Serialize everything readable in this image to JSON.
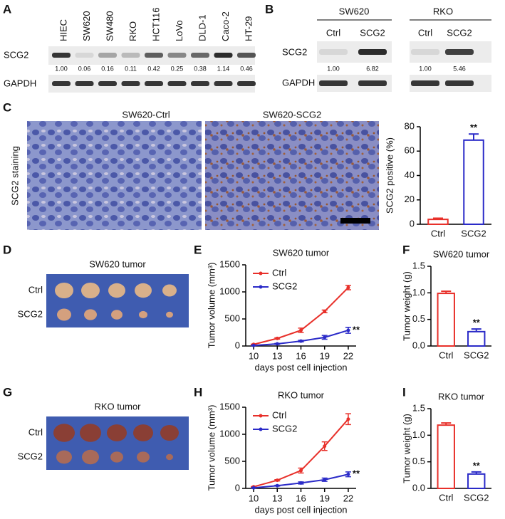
{
  "panel_labels": [
    "A",
    "B",
    "C",
    "D",
    "E",
    "F",
    "G",
    "H",
    "I"
  ],
  "blot_a": {
    "lanes": [
      "HIEC",
      "SW620",
      "SW480",
      "RKO",
      "HCT116",
      "LoVo",
      "DLD-1",
      "Caco-2",
      "HT-29"
    ],
    "rows": [
      "SCG2",
      "GAPDH"
    ],
    "values": [
      "1.00",
      "0.06",
      "0.16",
      "0.11",
      "0.42",
      "0.25",
      "0.38",
      "1.14",
      "0.46"
    ]
  },
  "blot_b": {
    "groups": [
      "SW620",
      "RKO"
    ],
    "lanes": [
      "Ctrl",
      "SCG2",
      "Ctrl",
      "SCG2"
    ],
    "rows": [
      "SCG2",
      "GAPDH"
    ],
    "values": [
      "1.00",
      "6.82",
      "1.00",
      "5.46"
    ]
  },
  "staining": {
    "titles": [
      "SW620-Ctrl",
      "SW620-SCG2"
    ],
    "row_label": "SCG2 staining"
  },
  "tumor_d": {
    "title": "SW620 tumor",
    "rows": [
      "Ctrl",
      "SCG2"
    ]
  },
  "tumor_g": {
    "title": "RKO tumor",
    "rows": [
      "Ctrl",
      "SCG2"
    ]
  },
  "chart_data": [
    {
      "type": "bar",
      "y_label": "SCG2 positive (%)",
      "categories": [
        "Ctrl",
        "SCG2"
      ],
      "values": [
        4,
        69
      ],
      "errors": [
        1,
        5
      ],
      "colors": [
        "#e8302a",
        "#2a2ac8"
      ],
      "ylim": [
        0,
        80
      ],
      "yticks": [
        0,
        20,
        40,
        60,
        80
      ],
      "annotation": "**"
    },
    {
      "type": "line",
      "title": "SW620 tumor",
      "y_label": "Tumor volume (mm³)",
      "x_label": "days post cell injection",
      "x": [
        10,
        13,
        16,
        19,
        22
      ],
      "series": [
        {
          "name": "Ctrl",
          "color": "#e8302a",
          "values": [
            30,
            140,
            290,
            640,
            1080
          ],
          "errors": [
            5,
            12,
            40,
            25,
            40
          ]
        },
        {
          "name": "SCG2",
          "color": "#2a2ac8",
          "values": [
            10,
            40,
            90,
            160,
            290
          ],
          "errors": [
            3,
            8,
            15,
            35,
            55
          ]
        }
      ],
      "xlim": [
        9,
        23
      ],
      "xticks": [
        10,
        13,
        16,
        19,
        22
      ],
      "ylim": [
        0,
        1500
      ],
      "yticks": [
        0,
        500,
        1000,
        1500
      ],
      "legend": "upper left",
      "annotation": "**"
    },
    {
      "type": "bar",
      "title": "SW620 tumor",
      "y_label": "Tumor weight (g)",
      "categories": [
        "Ctrl",
        "SCG2"
      ],
      "values": [
        0.99,
        0.27
      ],
      "errors": [
        0.04,
        0.05
      ],
      "colors": [
        "#e8302a",
        "#2a2ac8"
      ],
      "ylim": [
        0,
        1.5
      ],
      "yticks": [
        {
          "value": 0,
          "label": "0.0"
        },
        0.5,
        {
          "value": 1,
          "label": "1.0"
        },
        1.5
      ],
      "annotation": "**"
    },
    {
      "type": "line",
      "title": "RKO tumor",
      "y_label": "Tumor volume (mm³)",
      "x_label": "days post cell injection",
      "x": [
        10,
        13,
        16,
        19,
        22
      ],
      "series": [
        {
          "name": "Ctrl",
          "color": "#e8302a",
          "values": [
            30,
            150,
            330,
            780,
            1280
          ],
          "errors": [
            5,
            12,
            45,
            80,
            100
          ]
        },
        {
          "name": "SCG2",
          "color": "#2a2ac8",
          "values": [
            10,
            50,
            100,
            160,
            260
          ],
          "errors": [
            3,
            8,
            20,
            30,
            45
          ]
        }
      ],
      "xlim": [
        9,
        23
      ],
      "xticks": [
        10,
        13,
        16,
        19,
        22
      ],
      "ylim": [
        0,
        1500
      ],
      "yticks": [
        0,
        500,
        1000,
        1500
      ],
      "legend": "upper left",
      "annotation": "**"
    },
    {
      "type": "bar",
      "title": "RKO tumor",
      "y_label": "Tumor weight (g)",
      "categories": [
        "Ctrl",
        "SCG2"
      ],
      "values": [
        1.19,
        0.27
      ],
      "errors": [
        0.04,
        0.04
      ],
      "colors": [
        "#e8302a",
        "#2a2ac8"
      ],
      "ylim": [
        0,
        1.5
      ],
      "yticks": [
        {
          "value": 0,
          "label": "0.0"
        },
        0.5,
        {
          "value": 1,
          "label": "1.0"
        },
        1.5
      ],
      "annotation": "**"
    }
  ]
}
